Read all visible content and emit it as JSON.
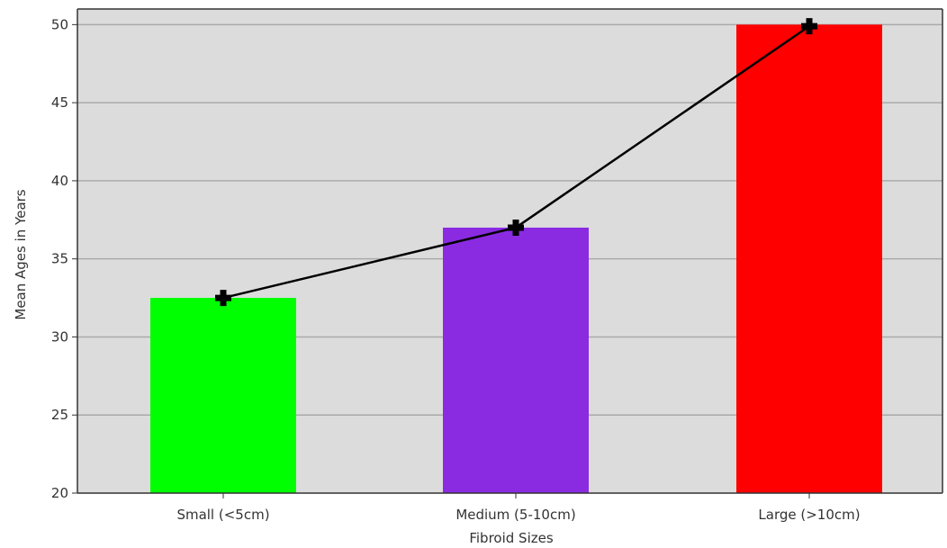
{
  "chart_data": {
    "type": "bar",
    "categories": [
      "Small (<5cm)",
      "Medium (5-10cm)",
      "Large (>10cm)"
    ],
    "values": [
      32.5,
      37,
      50
    ],
    "bar_colors": [
      "#00ff00",
      "#8a2be2",
      "#ff0000"
    ],
    "line_series": {
      "values": [
        32.5,
        37,
        49.9
      ],
      "color": "#000000",
      "marker": "filled-plus"
    },
    "xlabel": "Fibroid Sizes",
    "ylabel": "Mean Ages in Years",
    "ylim": [
      20,
      51
    ],
    "yticks": [
      20,
      25,
      30,
      35,
      40,
      45,
      50
    ],
    "grid": true,
    "background_color": "#dcdcdc",
    "grid_color": "#aaaaaa"
  }
}
